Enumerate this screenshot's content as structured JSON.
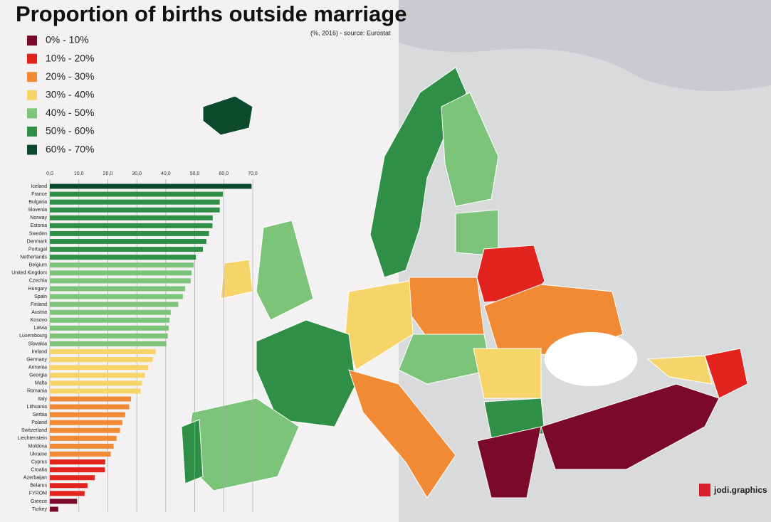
{
  "chart_data": {
    "type": "bar",
    "orientation": "horizontal",
    "title": "Proportion of births outside marriage",
    "subtitle": "(%, 2016) - source: Eurostat",
    "legend": [
      {
        "label": "0% - 10%",
        "color": "#7b0a2a"
      },
      {
        "label": "10% - 20%",
        "color": "#e3231e"
      },
      {
        "label": "20% - 30%",
        "color": "#f08a35"
      },
      {
        "label": "30% - 40%",
        "color": "#f6d46a"
      },
      {
        "label": "40% - 50%",
        "color": "#7cc47a"
      },
      {
        "label": "50% - 60%",
        "color": "#2f8f46"
      },
      {
        "label": "60% - 70%",
        "color": "#0b4a2c"
      }
    ],
    "categories": [
      "Iceland",
      "France",
      "Bulgaria",
      "Slovenia",
      "Norway",
      "Estonia",
      "Sweden",
      "Denmark",
      "Portugal",
      "Netherlands",
      "Belgium",
      "United Kingdom",
      "Czechia",
      "Hungary",
      "Spain",
      "Finland",
      "Austria",
      "Kosovo",
      "Latvia",
      "Luxembourg",
      "Slovakia",
      "Ireland",
      "Germany",
      "Armenia",
      "Georgia",
      "Malta",
      "Romania",
      "Italy",
      "Lithuania",
      "Serbia",
      "Poland",
      "Switzerland",
      "Liechtenstein",
      "Moldova",
      "Ukraine",
      "Cyprus",
      "Croatia",
      "Azerbaijan",
      "Belarus",
      "FYROM",
      "Greece",
      "Turkey"
    ],
    "values": [
      69.6,
      59.7,
      58.6,
      58.6,
      56.2,
      56.1,
      54.9,
      54.0,
      52.8,
      50.4,
      49.6,
      48.9,
      48.6,
      46.7,
      45.9,
      44.3,
      41.7,
      41.3,
      41.0,
      40.7,
      40.2,
      36.5,
      35.5,
      34.0,
      32.8,
      31.8,
      31.3,
      28.0,
      27.4,
      26.0,
      25.0,
      24.2,
      23.0,
      22.0,
      21.0,
      19.1,
      19.0,
      15.5,
      13.0,
      12.0,
      9.4,
      2.9
    ],
    "xlim": [
      0,
      70
    ],
    "xticks": [
      {
        "value": 0,
        "label": "0,0"
      },
      {
        "value": 10,
        "label": "10,0"
      },
      {
        "value": 20,
        "label": "20,0"
      },
      {
        "value": 30,
        "label": "30,0"
      },
      {
        "value": 40,
        "label": "40,0"
      },
      {
        "value": 50,
        "label": "50,0"
      },
      {
        "value": 60,
        "label": "60,0"
      },
      {
        "value": 70,
        "label": "70,0"
      }
    ],
    "grid": true,
    "watermark": "jodi.graphics"
  }
}
